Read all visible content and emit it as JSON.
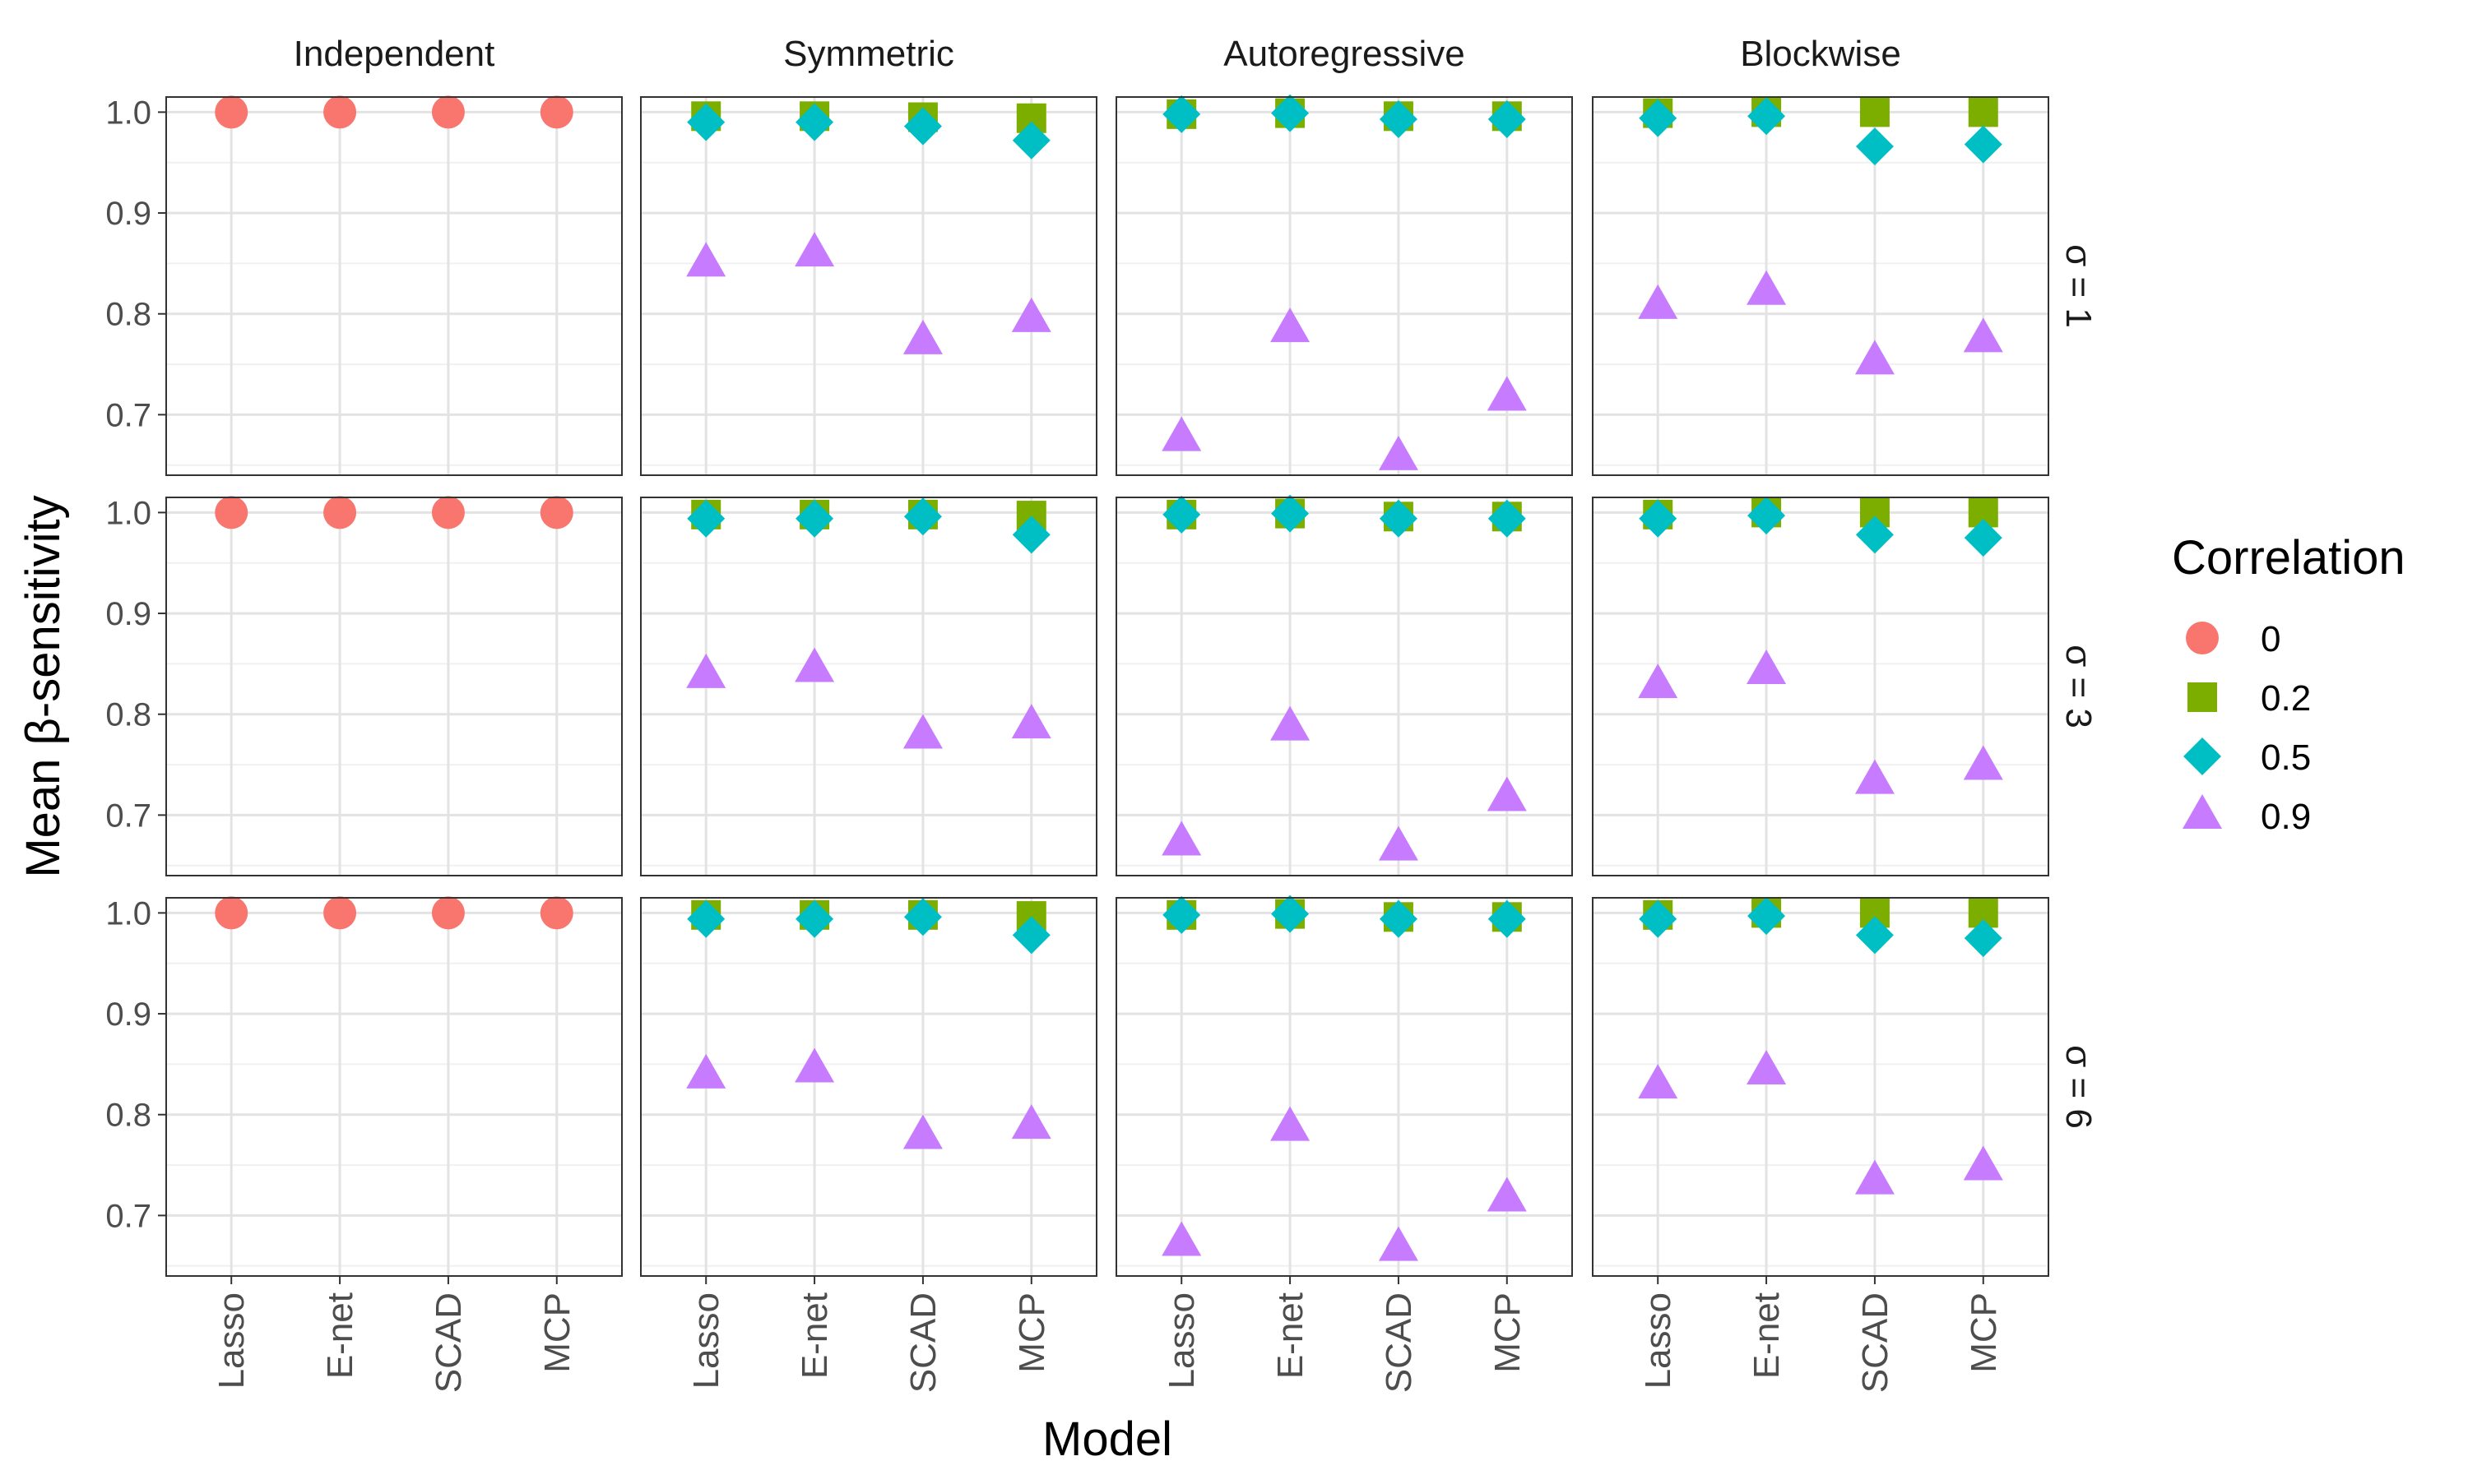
{
  "colors": {
    "0": "#F8766D",
    "0.2": "#7CAE00",
    "0.5": "#00BFC4",
    "0.9": "#C77CFF"
  },
  "chart_data": {
    "type": "scatter",
    "xlabel": "Model",
    "ylabel": "Mean β-sensitivity",
    "ylim": [
      0.64,
      1.015
    ],
    "y_ticks": [
      "0.7",
      "0.8",
      "0.9",
      "1.0"
    ],
    "categories": [
      "Lasso",
      "E-net",
      "SCAD",
      "MCP"
    ],
    "columns": [
      "Independent",
      "Symmetric",
      "Autoregressive",
      "Blockwise"
    ],
    "rows": [
      "σ = 1",
      "σ = 3",
      "σ = 6"
    ],
    "legend": {
      "title": "Correlation",
      "position": "right",
      "entries": [
        {
          "label": "0",
          "shape": "circle"
        },
        {
          "label": "0.2",
          "shape": "square"
        },
        {
          "label": "0.5",
          "shape": "diamond"
        },
        {
          "label": "0.9",
          "shape": "triangle"
        }
      ]
    },
    "grid": true,
    "panels": [
      [
        {
          "column": "Independent",
          "row": "σ = 1",
          "series": [
            {
              "correlation": "0",
              "values": [
                1.0,
                1.0,
                1.0,
                1.0
              ]
            }
          ]
        },
        {
          "column": "Symmetric",
          "row": "σ = 1",
          "series": [
            {
              "correlation": "0.2",
              "values": [
                0.996,
                0.996,
                0.995,
                0.994
              ]
            },
            {
              "correlation": "0.5",
              "values": [
                0.99,
                0.99,
                0.986,
                0.972
              ]
            },
            {
              "correlation": "0.9",
              "values": [
                0.85,
                0.86,
                0.773,
                0.795
              ]
            }
          ]
        },
        {
          "column": "Autoregressive",
          "row": "σ = 1",
          "series": [
            {
              "correlation": "0.2",
              "values": [
                0.998,
                0.999,
                0.996,
                0.996
              ]
            },
            {
              "correlation": "0.5",
              "values": [
                0.998,
                0.999,
                0.993,
                0.993
              ]
            },
            {
              "correlation": "0.9",
              "values": [
                0.677,
                0.785,
                0.658,
                0.717
              ]
            }
          ]
        },
        {
          "column": "Blockwise",
          "row": "σ = 1",
          "series": [
            {
              "correlation": "0.2",
              "values": [
                0.999,
                1.0,
                1.0,
                1.0
              ]
            },
            {
              "correlation": "0.5",
              "values": [
                0.994,
                0.996,
                0.966,
                0.968
              ]
            },
            {
              "correlation": "0.9",
              "values": [
                0.808,
                0.822,
                0.753,
                0.775
              ]
            }
          ]
        }
      ],
      [
        {
          "column": "Independent",
          "row": "σ = 3",
          "series": [
            {
              "correlation": "0",
              "values": [
                1.0,
                1.0,
                1.0,
                1.0
              ]
            }
          ]
        },
        {
          "column": "Symmetric",
          "row": "σ = 3",
          "series": [
            {
              "correlation": "0.2",
              "values": [
                0.998,
                0.998,
                0.998,
                0.997
              ]
            },
            {
              "correlation": "0.5",
              "values": [
                0.994,
                0.994,
                0.996,
                0.978
              ]
            },
            {
              "correlation": "0.9",
              "values": [
                0.839,
                0.845,
                0.779,
                0.789
              ]
            }
          ]
        },
        {
          "column": "Autoregressive",
          "row": "σ = 3",
          "series": [
            {
              "correlation": "0.2",
              "values": [
                0.998,
                0.999,
                0.996,
                0.996
              ]
            },
            {
              "correlation": "0.5",
              "values": [
                0.998,
                0.999,
                0.994,
                0.994
              ]
            },
            {
              "correlation": "0.9",
              "values": [
                0.673,
                0.787,
                0.668,
                0.717
              ]
            }
          ]
        },
        {
          "column": "Blockwise",
          "row": "σ = 3",
          "series": [
            {
              "correlation": "0.2",
              "values": [
                0.998,
                1.0,
                1.0,
                1.0
              ]
            },
            {
              "correlation": "0.5",
              "values": [
                0.994,
                0.997,
                0.978,
                0.975
              ]
            },
            {
              "correlation": "0.9",
              "values": [
                0.829,
                0.843,
                0.734,
                0.748
              ]
            }
          ]
        }
      ],
      [
        {
          "column": "Independent",
          "row": "σ = 6",
          "series": [
            {
              "correlation": "0",
              "values": [
                1.0,
                1.0,
                1.0,
                1.0
              ]
            }
          ]
        },
        {
          "column": "Symmetric",
          "row": "σ = 6",
          "series": [
            {
              "correlation": "0.2",
              "values": [
                0.998,
                0.998,
                0.998,
                0.997
              ]
            },
            {
              "correlation": "0.5",
              "values": [
                0.994,
                0.994,
                0.996,
                0.978
              ]
            },
            {
              "correlation": "0.9",
              "values": [
                0.839,
                0.845,
                0.779,
                0.789
              ]
            }
          ]
        },
        {
          "column": "Autoregressive",
          "row": "σ = 6",
          "series": [
            {
              "correlation": "0.2",
              "values": [
                0.998,
                0.999,
                0.996,
                0.996
              ]
            },
            {
              "correlation": "0.5",
              "values": [
                0.998,
                0.999,
                0.994,
                0.994
              ]
            },
            {
              "correlation": "0.9",
              "values": [
                0.673,
                0.787,
                0.668,
                0.717
              ]
            }
          ]
        },
        {
          "column": "Blockwise",
          "row": "σ = 6",
          "series": [
            {
              "correlation": "0.2",
              "values": [
                0.998,
                1.0,
                1.0,
                1.0
              ]
            },
            {
              "correlation": "0.5",
              "values": [
                0.994,
                0.997,
                0.978,
                0.975
              ]
            },
            {
              "correlation": "0.9",
              "values": [
                0.829,
                0.843,
                0.734,
                0.748
              ]
            }
          ]
        }
      ]
    ]
  }
}
